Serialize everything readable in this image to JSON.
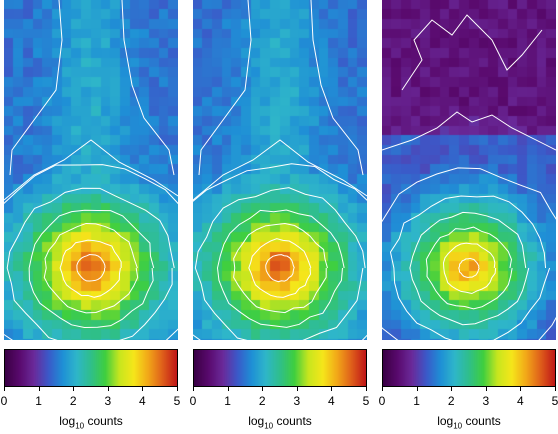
{
  "chart_data": [
    {
      "type": "heatmap",
      "title": "",
      "colorbar": {
        "label": "log10 counts",
        "label_base": "log",
        "label_subscript": "10",
        "label_suffix": " counts",
        "ticks": [
          0,
          1,
          2,
          3,
          4,
          5
        ],
        "range": [
          0,
          5
        ]
      },
      "peak_log_counts": 4.6,
      "background": "plume",
      "contours": true
    },
    {
      "type": "heatmap",
      "title": "",
      "colorbar": {
        "label": "log10 counts",
        "label_base": "log",
        "label_subscript": "10",
        "label_suffix": " counts",
        "ticks": [
          0,
          1,
          2,
          3,
          4,
          5
        ],
        "range": [
          0,
          5
        ]
      },
      "peak_log_counts": 4.6,
      "background": "plume",
      "contours": true
    },
    {
      "type": "heatmap",
      "title": "",
      "colorbar": {
        "label": "log10 counts",
        "label_base": "log",
        "label_subscript": "10",
        "label_suffix": " counts",
        "ticks": [
          0,
          1,
          2,
          3,
          4,
          5
        ],
        "range": [
          0,
          5
        ]
      },
      "peak_log_counts": 4.2,
      "background": "low",
      "contours": true
    }
  ],
  "colormap": [
    "#3b0046",
    "#5a0a6e",
    "#6a2a9a",
    "#3c58c8",
    "#1f8fd6",
    "#2eb6c9",
    "#2fbf8a",
    "#3fcf3f",
    "#c8e61e",
    "#f5e61a",
    "#f2a818",
    "#e0601a",
    "#c01818"
  ]
}
